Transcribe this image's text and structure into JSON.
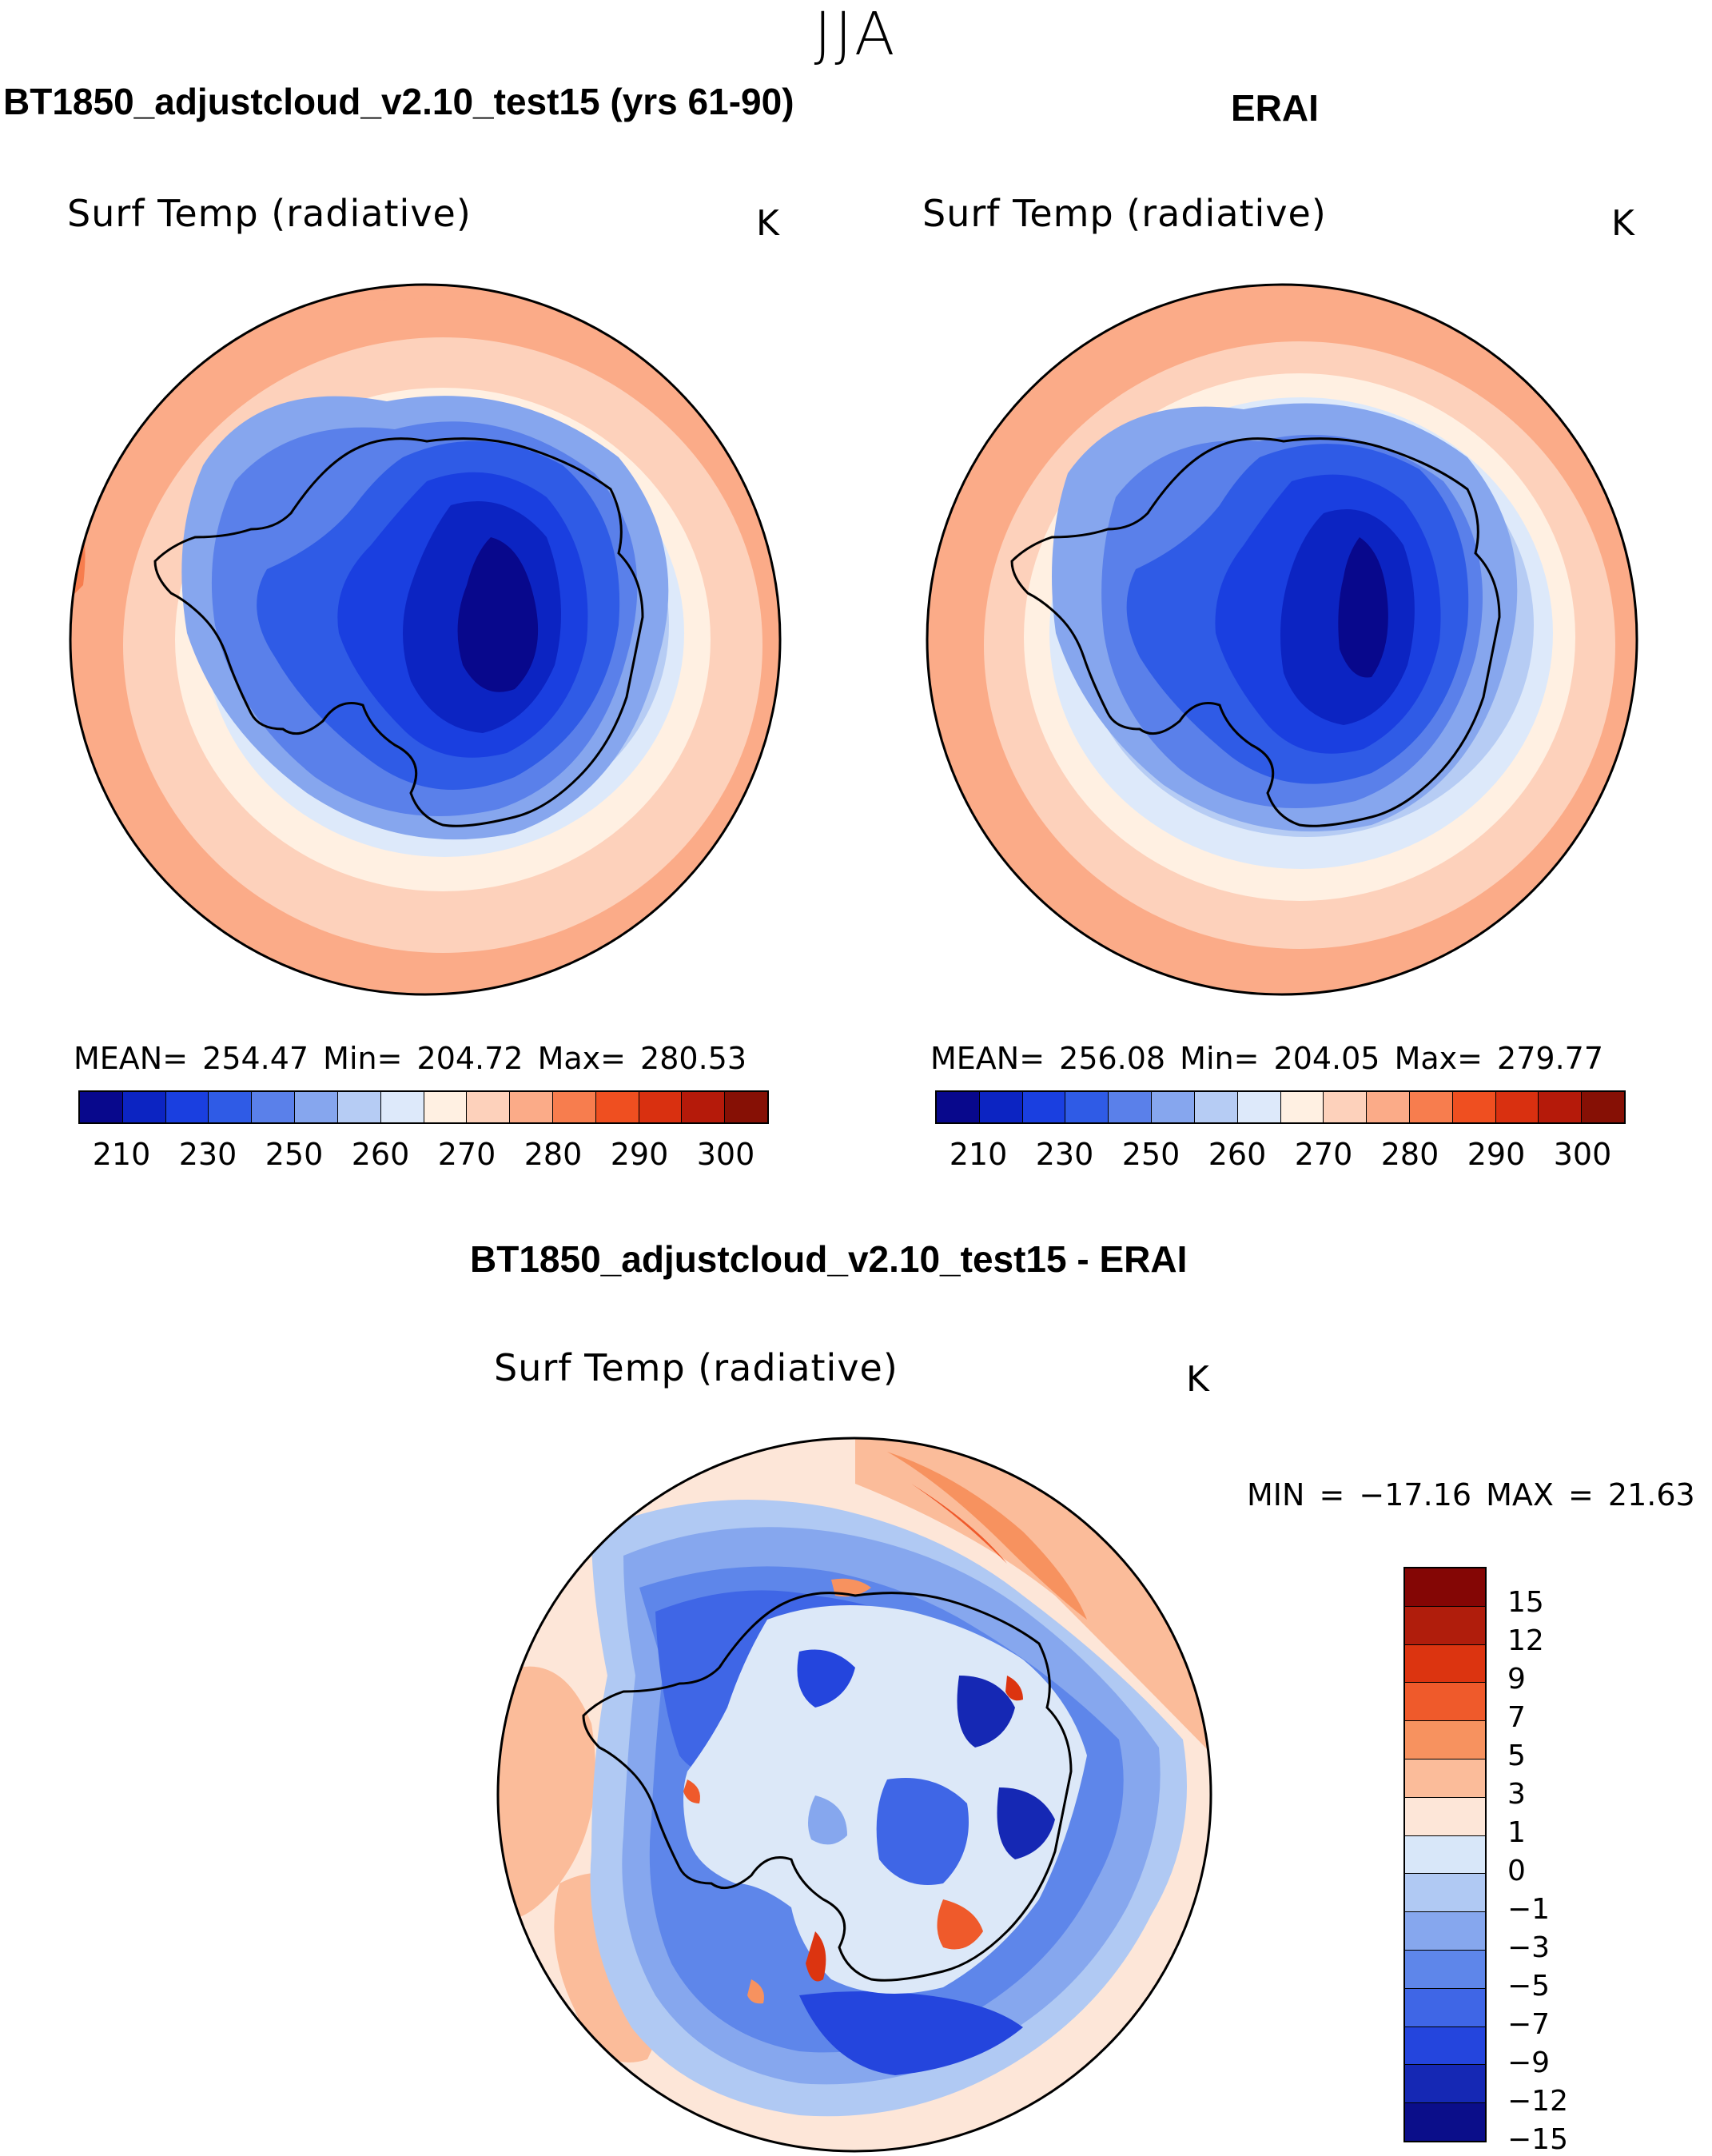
{
  "season": "JJA",
  "top_left": {
    "title": "BT1850_adjustcloud_v2.10_test15 (yrs 61-90)",
    "variable": "Surf Temp (radiative)",
    "unit": "K",
    "stats": "MEAN=  254.47   Min=  204.72   Max=  280.53"
  },
  "top_right": {
    "title": "ERAI",
    "variable": "Surf Temp (radiative)",
    "unit": "K",
    "stats": "MEAN=  256.08   Min=  204.05   Max=  279.77"
  },
  "bottom": {
    "title": "BT1850_adjustcloud_v2.10_test15 - ERAI",
    "variable": "Surf Temp (radiative)",
    "unit": "K",
    "minmax": "MIN  =  −17.16  MAX  =    21.63"
  },
  "abs_colorbar": {
    "colors": [
      "#08088c",
      "#0c24c2",
      "#1a3fe0",
      "#2f5be6",
      "#5a80ea",
      "#86a6ee",
      "#b6ccf4",
      "#dde9fa",
      "#fff0e2",
      "#fdd1bb",
      "#fbab88",
      "#f77d4e",
      "#ef4f20",
      "#d93010",
      "#b51a0a",
      "#861005"
    ],
    "tick_labels": [
      "210",
      "230",
      "250",
      "260",
      "270",
      "280",
      "290",
      "300"
    ]
  },
  "diff_colorbar": {
    "colors": [
      "#840605",
      "#b01d0c",
      "#dc3410",
      "#ef5a2b",
      "#f7925f",
      "#fbbc9a",
      "#fde6d8",
      "#d8e7f9",
      "#b0c9f3",
      "#86a7ee",
      "#5e86ea",
      "#3f66e6",
      "#2445dd",
      "#1528b4",
      "#0b0e8a"
    ],
    "tick_labels": [
      "15",
      "12",
      "9",
      "7",
      "5",
      "3",
      "1",
      "0",
      "−1",
      "−3",
      "−5",
      "−7",
      "−9",
      "−12",
      "−15"
    ]
  }
}
